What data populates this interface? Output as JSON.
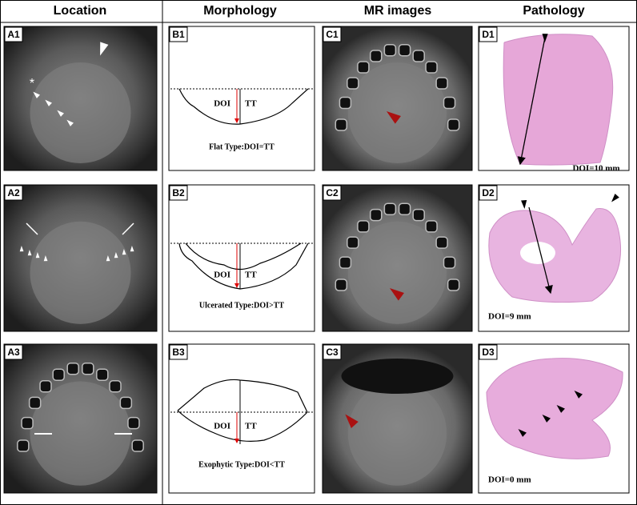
{
  "headers": [
    "Location",
    "Morphology",
    "MR images",
    "Pathology"
  ],
  "panels": [
    {
      "label": "A1",
      "marker": "*"
    },
    {
      "label": "A2"
    },
    {
      "label": "A3"
    },
    {
      "label": "B1",
      "doi": "DOI",
      "tt": "TT",
      "caption": "Flat Type:DOI=TT"
    },
    {
      "label": "B2",
      "doi": "DOI",
      "tt": "TT",
      "caption": "Ulcerated Type:DOI>TT"
    },
    {
      "label": "B3",
      "doi": "DOI",
      "tt": "TT",
      "caption": "Exophytic Type:DOI<TT"
    },
    {
      "label": "C1"
    },
    {
      "label": "C2"
    },
    {
      "label": "C3"
    },
    {
      "label": "D1",
      "caption": "DOI=10 mm"
    },
    {
      "label": "D2",
      "caption": "DOI=9 mm"
    },
    {
      "label": "D3",
      "caption": "DOI=0 mm"
    }
  ]
}
